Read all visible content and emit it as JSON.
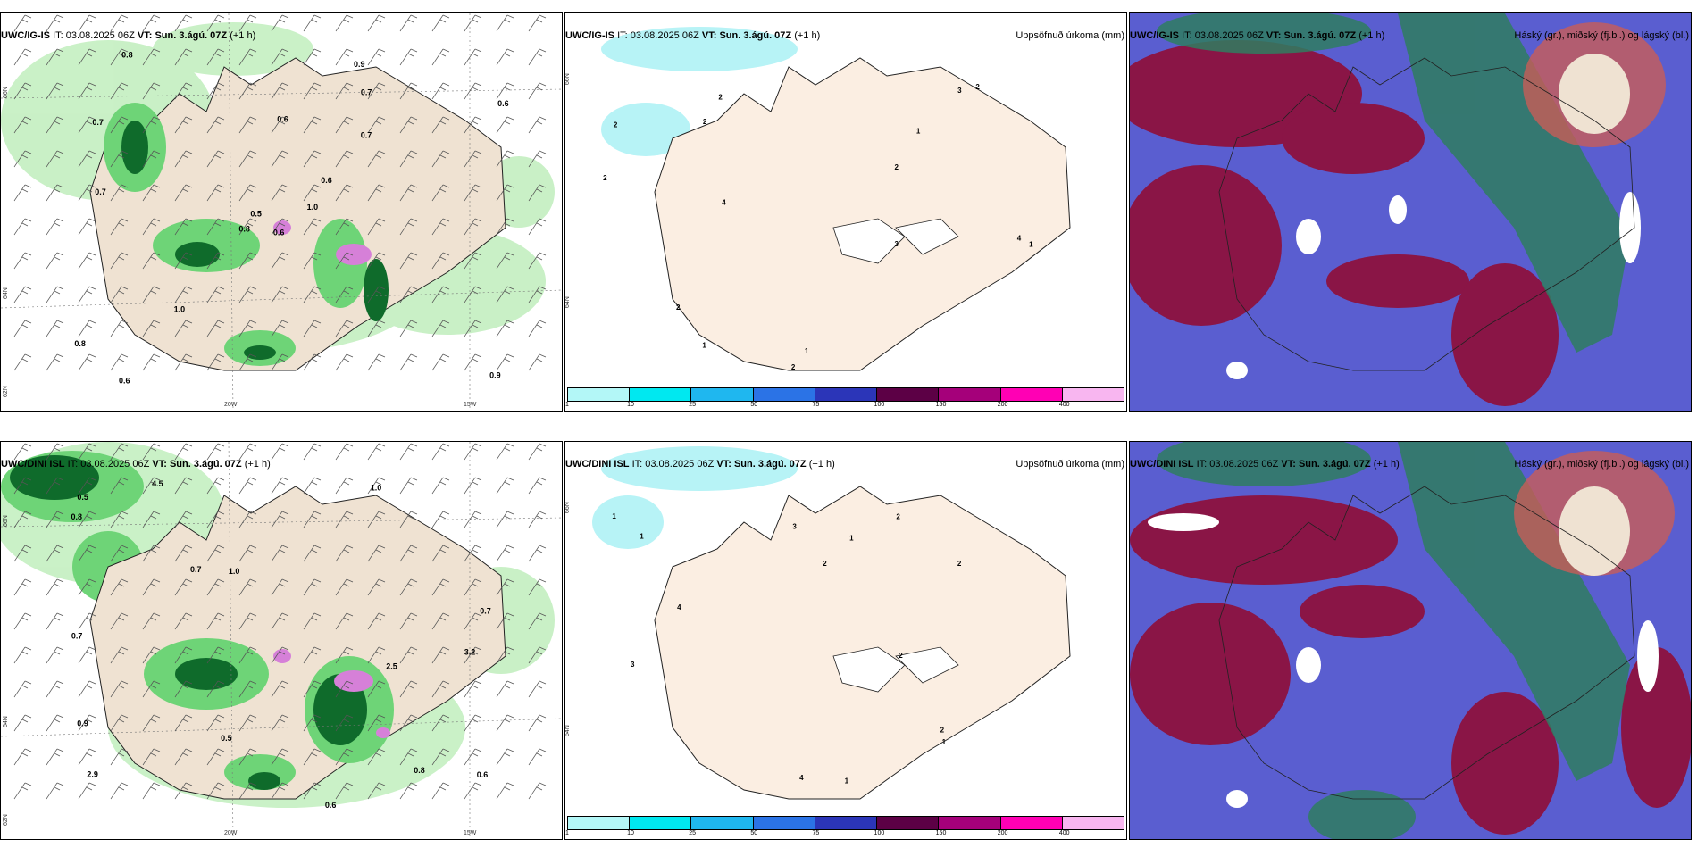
{
  "rows": [
    {
      "model": "UWC/IG-IS",
      "panels": [
        {
          "model": "UWC/IG-IS",
          "it_label": "IT:",
          "it_value": "03.08.2025 06Z",
          "vt_label": "VT:",
          "vt_value": "Sun. 3.ágú. 07Z",
          "offset": "(+1 h)",
          "right_title": ""
        },
        {
          "model": "UWC/IG-IS",
          "it_label": "IT:",
          "it_value": "03.08.2025 06Z",
          "vt_label": "VT:",
          "vt_value": "Sun. 3.ágú. 07Z",
          "offset": "(+1 h)",
          "right_title": "Uppsöfnuð úrkoma (mm)"
        },
        {
          "model": "UWC/IG-IS",
          "it_label": "IT:",
          "it_value": "03.08.2025 06Z",
          "vt_label": "VT:",
          "vt_value": "Sun. 3.ágú. 07Z",
          "offset": "(+1 h)",
          "right_title": "Háský (gr.), miðský (fj.bl.) og lágský (bl.)"
        }
      ],
      "lon_labels": [
        "20W",
        "15W"
      ],
      "lat_labels": [
        "66N",
        "64N",
        "62N"
      ]
    },
    {
      "model": "UWC/DINI ISL",
      "panels": [
        {
          "model": "UWC/DINI ISL",
          "it_label": "IT:",
          "it_value": "03.08.2025 06Z",
          "vt_label": "VT:",
          "vt_value": "Sun. 3.ágú. 07Z",
          "offset": "(+1 h)",
          "right_title": ""
        },
        {
          "model": "UWC/DINI ISL",
          "it_label": "IT:",
          "it_value": "03.08.2025 06Z",
          "vt_label": "VT:",
          "vt_value": "Sun. 3.ágú. 07Z",
          "offset": "(+1 h)",
          "right_title": "Uppsöfnuð úrkoma (mm)"
        },
        {
          "model": "UWC/DINI ISL",
          "it_label": "IT:",
          "it_value": "03.08.2025 06Z",
          "vt_label": "VT:",
          "vt_value": "Sun. 3.ágú. 07Z",
          "offset": "(+1 h)",
          "right_title": "Háský (gr.), miðský (fj.bl.) og lágský (bl.)"
        }
      ],
      "lon_labels": [
        "20W",
        "15W"
      ],
      "lat_labels": [
        "66N",
        "64N",
        "62N"
      ]
    }
  ],
  "legend": {
    "ticks": [
      "1",
      "10",
      "25",
      "50",
      "75",
      "100",
      "150",
      "200",
      "400"
    ],
    "colors": [
      "#b3f7f7",
      "#00e8f0",
      "#1fb7ef",
      "#2b73e6",
      "#2b35b8",
      "#5c0045",
      "#a5007a",
      "#ff00b4",
      "#f8b6f0"
    ]
  },
  "precip_labels_top": [
    "0.6",
    "0.7",
    "0.5",
    "0.8",
    "0.6",
    "1.0",
    "0.9",
    "0.6",
    "0.7",
    "1.0",
    "0.8",
    "0.9",
    "0.7",
    "0.6",
    "0.8",
    "0.7",
    "0.6"
  ],
  "precip_labels_bottom": [
    "2.5",
    "3.2",
    "2.9",
    "4.5",
    "1.0",
    "0.8",
    "0.9",
    "1.0",
    "0.7",
    "0.6",
    "0.8",
    "0.7",
    "0.5",
    "0.6",
    "0.5",
    "0.7"
  ],
  "accum_labels_top": [
    "2",
    "2",
    "2",
    "1",
    "3",
    "2",
    "3",
    "4",
    "2",
    "1",
    "4",
    "2",
    "1",
    "2",
    "2",
    "1"
  ],
  "accum_labels_bottom": [
    "2",
    "1",
    "1",
    "2",
    "4",
    "3",
    "1",
    "2",
    "4",
    "3",
    "2",
    "1",
    "2",
    "1"
  ],
  "colors": {
    "land": "#efe2d2",
    "land_precip": "#fbeee2",
    "green_light": "#c7f0c4",
    "green_mid": "#6ed477",
    "green_dark": "#0f6b2b",
    "magenta": "#d680d8",
    "cyan": "#b7f3f6",
    "cloud_high": "#2f7d60",
    "cloud_mid": "#8a1546",
    "cloud_low": "#5a5ed0"
  }
}
